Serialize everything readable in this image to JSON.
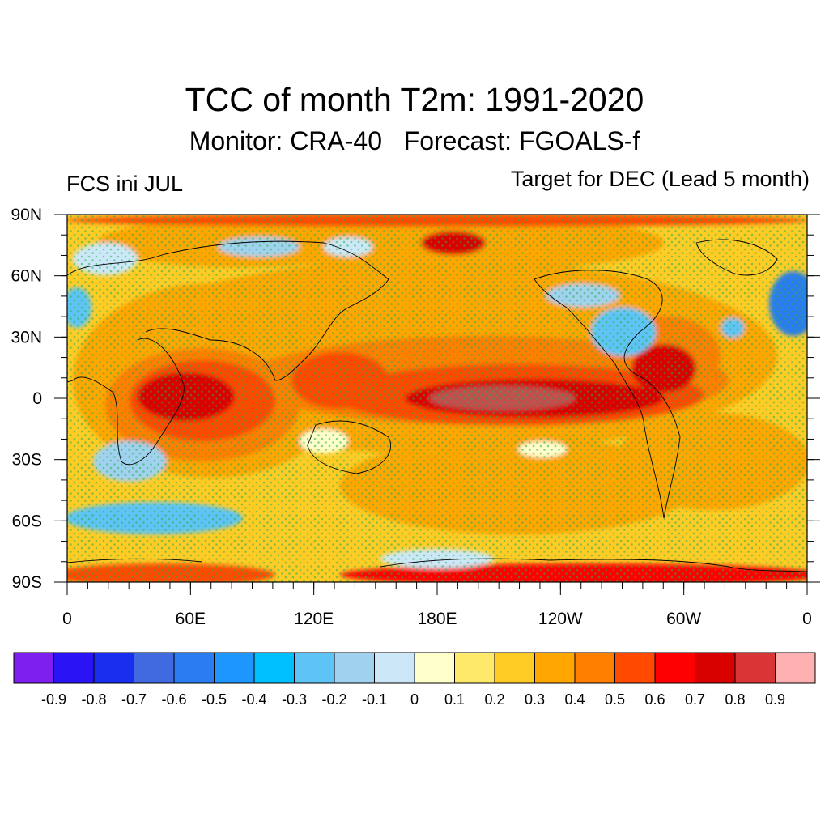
{
  "titles": {
    "main": "TCC of month T2m: 1991-2020",
    "subtitle": "Monitor: CRA-40   Forecast: FGOALS-f",
    "left": "FCS ini JUL",
    "right": "Target for DEC (Lead 5 month)"
  },
  "axes": {
    "y_ticks": [
      "90N",
      "60N",
      "30N",
      "0",
      "30S",
      "60S",
      "90S"
    ],
    "x_ticks": [
      "0",
      "60E",
      "120E",
      "180E",
      "120W",
      "60W",
      "0"
    ]
  },
  "colorbar": {
    "colors": [
      "#7e1ff0",
      "#2a14f5",
      "#1a2eef",
      "#4169e0",
      "#2a7cf0",
      "#1e96ff",
      "#00bfff",
      "#5ec4f5",
      "#a0d2f0",
      "#cce8f8",
      "#ffffcc",
      "#ffe96b",
      "#ffcc26",
      "#ffa600",
      "#ff7f00",
      "#ff4a00",
      "#ff0000",
      "#d90000",
      "#d93535",
      "#ffb0b0"
    ],
    "labels": [
      "-0.9",
      "-0.8",
      "-0.7",
      "-0.6",
      "-0.5",
      "-0.4",
      "-0.3",
      "-0.2",
      "-0.1",
      "0",
      "0.1",
      "0.2",
      "0.3",
      "0.4",
      "0.5",
      "0.6",
      "0.7",
      "0.8",
      "0.9"
    ]
  },
  "stipple_color": "#22b14c"
}
